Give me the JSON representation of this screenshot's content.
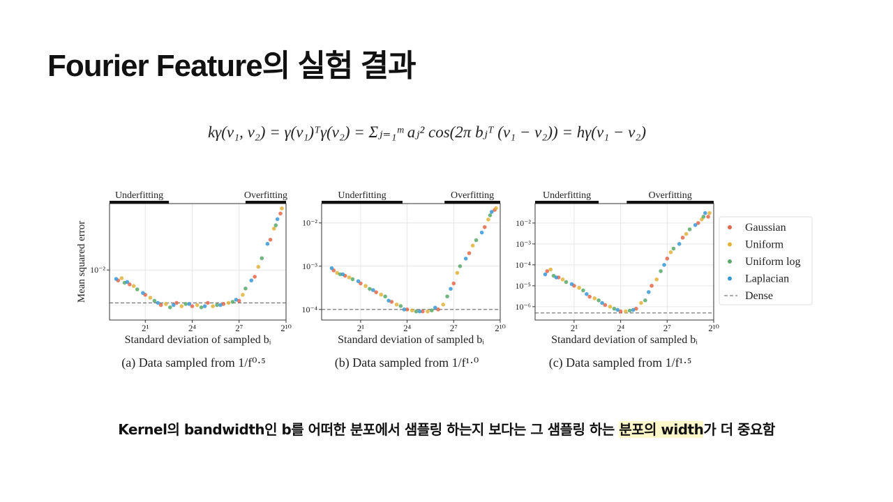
{
  "title": "Fourier Feature의 실험 결과",
  "formula": "kγ(v₁, v₂) = γ(v₁)ᵀγ(v₂) = Σⱼ₌₁ᵐ aⱼ² cos(2π bⱼᵀ (v₁ − v₂)) = hγ(v₁ − v₂)",
  "legend": {
    "entries": [
      {
        "name": "Gaussian",
        "color": "#e4684a"
      },
      {
        "name": "Uniform",
        "color": "#e1b23c"
      },
      {
        "name": "Uniform log",
        "color": "#5aa86b"
      },
      {
        "name": "Laplacian",
        "color": "#3b98d6"
      }
    ],
    "dense": "Dense"
  },
  "note": {
    "before": "Kernel의 bandwidth인  b를 어떠한 분포에서 샘플링 하는지 보다는 그 샘플링 하는 ",
    "highlight": "분포의 width",
    "after": "가 더 중요함"
  },
  "chart_data": [
    {
      "type": "scatter",
      "caption": "(a) Data sampled from 1/f⁰·⁵",
      "xlabel": "Standard deviation of sampled bᵢ",
      "ylabel": "Mean squared error",
      "xscale": "log2",
      "yscale": "log",
      "grid": true,
      "xlim": [
        0.41,
        1024
      ],
      "ylim": [
        0.0046,
        0.028
      ],
      "xticks": [
        {
          "value": 2,
          "label": "2¹"
        },
        {
          "value": 16,
          "label": "2⁴"
        },
        {
          "value": 128,
          "label": "2⁷"
        },
        {
          "value": 1024,
          "label": "2¹⁰"
        }
      ],
      "yticks": [
        {
          "value": 0.01,
          "label": "10⁻²"
        }
      ],
      "dense": 0.006,
      "regions": [
        {
          "label": "Underfitting",
          "range": [
            0.41,
            5.7
          ]
        },
        {
          "label": "Overfitting",
          "range": [
            170,
            1024
          ]
        }
      ],
      "series": [
        {
          "x": [
            0.6,
            1,
            2,
            4,
            8,
            16,
            32,
            64,
            128,
            256,
            512,
            800
          ],
          "values": [
            0.0085,
            0.008,
            0.0068,
            0.0058,
            0.006,
            0.0057,
            0.006,
            0.0059,
            0.0062,
            0.009,
            0.016,
            0.024
          ]
        },
        {
          "x": [
            0.7,
            1.2,
            2.5,
            5,
            10,
            20,
            40,
            80,
            150,
            300,
            600,
            850
          ],
          "values": [
            0.0088,
            0.0078,
            0.0065,
            0.0059,
            0.0057,
            0.0058,
            0.0057,
            0.006,
            0.0068,
            0.0105,
            0.019,
            0.026
          ]
        },
        {
          "x": [
            0.8,
            1.4,
            3,
            6,
            12,
            24,
            48,
            96,
            170,
            350,
            650
          ],
          "values": [
            0.0082,
            0.0074,
            0.0062,
            0.0056,
            0.0059,
            0.0056,
            0.0058,
            0.0061,
            0.0075,
            0.012,
            0.02
          ]
        },
        {
          "x": [
            0.55,
            0.9,
            1.8,
            3.5,
            7,
            14,
            28,
            56,
            112,
            220,
            450,
            700
          ],
          "values": [
            0.0087,
            0.0083,
            0.007,
            0.006,
            0.0058,
            0.0059,
            0.0057,
            0.0058,
            0.0063,
            0.0085,
            0.015,
            0.022
          ]
        }
      ]
    },
    {
      "type": "scatter",
      "caption": "(b) Data sampled from 1/f¹·⁰",
      "xlabel": "Standard deviation of sampled bᵢ",
      "xscale": "log2",
      "yscale": "log",
      "grid": true,
      "xlim": [
        0.35,
        1024
      ],
      "ylim": [
        5.7e-05,
        0.028
      ],
      "xticks": [
        {
          "value": 2,
          "label": "2¹"
        },
        {
          "value": 16,
          "label": "2⁴"
        },
        {
          "value": 128,
          "label": "2⁷"
        },
        {
          "value": 1024,
          "label": "2¹⁰"
        }
      ],
      "yticks": [
        {
          "value": 0.0001,
          "label": "10⁻⁴"
        },
        {
          "value": 0.001,
          "label": "10⁻³"
        },
        {
          "value": 0.01,
          "label": "10⁻²"
        }
      ],
      "dense": 0.0001,
      "regions": [
        {
          "label": "Underfitting",
          "range": [
            0.35,
            13
          ]
        },
        {
          "label": "Overfitting",
          "range": [
            85,
            1024
          ]
        }
      ],
      "series": [
        {
          "x": [
            0.6,
            1,
            2,
            4,
            8,
            16,
            32,
            64,
            128,
            256,
            512,
            800
          ],
          "values": [
            0.0008,
            0.0006,
            0.0004,
            0.00025,
            0.00015,
            0.0001,
            9e-05,
            0.0001,
            0.0004,
            0.002,
            0.008,
            0.02
          ]
        },
        {
          "x": [
            0.7,
            1.2,
            2.5,
            5,
            10,
            20,
            40,
            80,
            150,
            300,
            600,
            850
          ],
          "values": [
            0.0007,
            0.00055,
            0.00035,
            0.00022,
            0.00013,
            9.5e-05,
            9e-05,
            0.00013,
            0.0007,
            0.003,
            0.012,
            0.022
          ]
        },
        {
          "x": [
            0.8,
            1.4,
            3,
            6,
            12,
            24,
            48,
            96,
            170,
            350,
            650
          ],
          "values": [
            0.00065,
            0.0005,
            0.0003,
            0.0002,
            0.00012,
            9e-05,
            9.5e-05,
            0.0002,
            0.001,
            0.004,
            0.015
          ]
        },
        {
          "x": [
            0.55,
            0.9,
            1.8,
            3.5,
            7,
            14,
            28,
            56,
            112,
            220,
            450,
            700
          ],
          "values": [
            0.0009,
            0.00065,
            0.00045,
            0.00028,
            0.00016,
            0.0001,
            9e-05,
            0.00011,
            0.0003,
            0.0015,
            0.006,
            0.018
          ]
        }
      ]
    },
    {
      "type": "scatter",
      "caption": "(c) Data sampled from 1/f¹·⁵",
      "xlabel": "Standard deviation of sampled bᵢ",
      "xscale": "log2",
      "yscale": "log",
      "grid": true,
      "xlim": [
        0.35,
        1024
      ],
      "ylim": [
        2.3e-07,
        0.085
      ],
      "xticks": [
        {
          "value": 2,
          "label": "2¹"
        },
        {
          "value": 16,
          "label": "2⁴"
        },
        {
          "value": 128,
          "label": "2⁷"
        },
        {
          "value": 1024,
          "label": "2¹⁰"
        }
      ],
      "yticks": [
        {
          "value": 1e-06,
          "label": "10⁻⁶"
        },
        {
          "value": 1e-05,
          "label": "10⁻⁵"
        },
        {
          "value": 0.0001,
          "label": "10⁻⁴"
        },
        {
          "value": 0.001,
          "label": "10⁻³"
        },
        {
          "value": 0.01,
          "label": "10⁻²"
        }
      ],
      "dense": 5e-07,
      "regions": [
        {
          "label": "Underfitting",
          "range": [
            0.35,
            6
          ]
        },
        {
          "label": "Overfitting",
          "range": [
            21,
            1024
          ]
        }
      ],
      "series": [
        {
          "x": [
            0.6,
            1,
            2,
            4,
            8,
            16,
            32,
            64,
            128,
            256,
            512,
            800
          ],
          "values": [
            5e-05,
            2.5e-05,
            1e-05,
            3e-06,
            1.2e-06,
            6e-07,
            8e-07,
            1e-05,
            0.0002,
            0.002,
            0.01,
            0.02
          ]
        },
        {
          "x": [
            0.7,
            1.2,
            2.5,
            5,
            10,
            20,
            40,
            80,
            150,
            300,
            600,
            850
          ],
          "values": [
            6e-05,
            2e-05,
            8e-06,
            2.5e-06,
            1e-06,
            6e-07,
            1.5e-06,
            2e-05,
            0.0004,
            0.003,
            0.015,
            0.03
          ]
        },
        {
          "x": [
            0.8,
            1.4,
            3,
            6,
            12,
            24,
            48,
            96,
            170,
            350,
            650
          ],
          "values": [
            3e-05,
            1.5e-05,
            6e-06,
            2e-06,
            8e-07,
            6.5e-07,
            2e-06,
            5e-05,
            0.0006,
            0.005,
            0.02
          ]
        },
        {
          "x": [
            0.55,
            0.9,
            1.8,
            3.5,
            7,
            14,
            28,
            56,
            112,
            220,
            450,
            700
          ],
          "values": [
            3.5e-05,
            2.5e-05,
            1.2e-05,
            4e-06,
            1.5e-06,
            7e-07,
            7e-07,
            5e-06,
            0.0001,
            0.001,
            0.008,
            0.03
          ]
        }
      ]
    }
  ]
}
